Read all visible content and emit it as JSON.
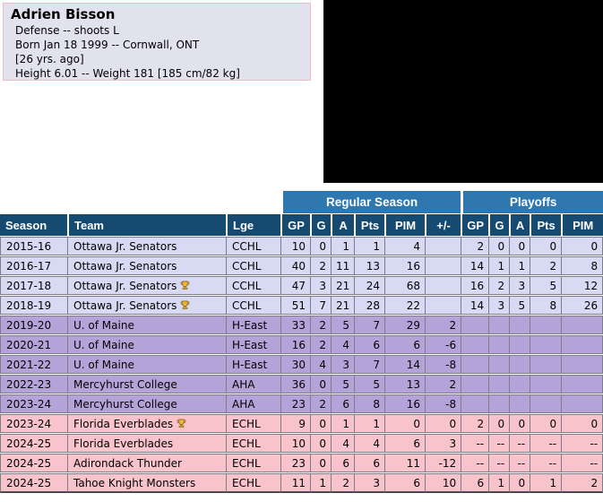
{
  "player_info": {
    "name": "Adrien Bisson",
    "details": [
      "Defense -- shoots L",
      "Born Jan 18 1999 -- Cornwall, ONT",
      "[26 yrs. ago]",
      "Height 6.01 -- Weight 181 [185 cm/82 kg]"
    ]
  },
  "colors": {
    "band_blue": "#2e77af",
    "header_navy": "#174a70",
    "row_lavender": "#d8d9f2",
    "row_purple": "#b4a3d8",
    "row_pink": "#f8c3cb",
    "grid_line": "#7d7d8a",
    "info_bg": "#e2e2ef",
    "info_border": "#f3bac5",
    "trophy_gold": "#f2b632"
  },
  "stats_table": {
    "group_headers": {
      "regular_season": "Regular Season",
      "playoffs": "Playoffs"
    },
    "columns": [
      "Season",
      "Team",
      "Lge",
      "GP",
      "G",
      "A",
      "Pts",
      "PIM",
      "+/-",
      "GP",
      "G",
      "A",
      "Pts",
      "PIM"
    ],
    "rows": [
      {
        "season": "2015-16",
        "team": "Ottawa Jr. Senators",
        "trophy": false,
        "lge": "CCHL",
        "rs": [
          "10",
          "0",
          "1",
          "1",
          "4",
          ""
        ],
        "po": [
          "2",
          "0",
          "0",
          "0",
          "0"
        ],
        "color": "lavender"
      },
      {
        "season": "2016-17",
        "team": "Ottawa Jr. Senators",
        "trophy": false,
        "lge": "CCHL",
        "rs": [
          "40",
          "2",
          "11",
          "13",
          "16",
          ""
        ],
        "po": [
          "14",
          "1",
          "1",
          "2",
          "8"
        ],
        "color": "lavender"
      },
      {
        "season": "2017-18",
        "team": "Ottawa Jr. Senators",
        "trophy": true,
        "lge": "CCHL",
        "rs": [
          "47",
          "3",
          "21",
          "24",
          "68",
          ""
        ],
        "po": [
          "16",
          "2",
          "3",
          "5",
          "12"
        ],
        "color": "lavender"
      },
      {
        "season": "2018-19",
        "team": "Ottawa Jr. Senators",
        "trophy": true,
        "lge": "CCHL",
        "rs": [
          "51",
          "7",
          "21",
          "28",
          "22",
          ""
        ],
        "po": [
          "14",
          "3",
          "5",
          "8",
          "26"
        ],
        "color": "lavender"
      },
      {
        "season": "2019-20",
        "team": "U. of Maine",
        "trophy": false,
        "lge": "H-East",
        "rs": [
          "33",
          "2",
          "5",
          "7",
          "29",
          "2"
        ],
        "po": [
          "",
          "",
          "",
          "",
          ""
        ],
        "color": "purple"
      },
      {
        "season": "2020-21",
        "team": "U. of Maine",
        "trophy": false,
        "lge": "H-East",
        "rs": [
          "16",
          "2",
          "4",
          "6",
          "6",
          "-6"
        ],
        "po": [
          "",
          "",
          "",
          "",
          ""
        ],
        "color": "purple"
      },
      {
        "season": "2021-22",
        "team": "U. of Maine",
        "trophy": false,
        "lge": "H-East",
        "rs": [
          "30",
          "4",
          "3",
          "7",
          "14",
          "-8"
        ],
        "po": [
          "",
          "",
          "",
          "",
          ""
        ],
        "color": "purple"
      },
      {
        "season": "2022-23",
        "team": "Mercyhurst College",
        "trophy": false,
        "lge": "AHA",
        "rs": [
          "36",
          "0",
          "5",
          "5",
          "13",
          "2"
        ],
        "po": [
          "",
          "",
          "",
          "",
          ""
        ],
        "color": "purple"
      },
      {
        "season": "2023-24",
        "team": "Mercyhurst College",
        "trophy": false,
        "lge": "AHA",
        "rs": [
          "23",
          "2",
          "6",
          "8",
          "16",
          "-8"
        ],
        "po": [
          "",
          "",
          "",
          "",
          ""
        ],
        "color": "purple"
      },
      {
        "season": "2023-24",
        "team": "Florida Everblades",
        "trophy": true,
        "lge": "ECHL",
        "rs": [
          "9",
          "0",
          "1",
          "1",
          "0",
          "0"
        ],
        "po": [
          "2",
          "0",
          "0",
          "0",
          "0"
        ],
        "color": "pink"
      },
      {
        "season": "2024-25",
        "team": "Florida Everblades",
        "trophy": false,
        "lge": "ECHL",
        "rs": [
          "10",
          "0",
          "4",
          "4",
          "6",
          "3"
        ],
        "po": [
          "--",
          "--",
          "--",
          "--",
          "--"
        ],
        "color": "pink"
      },
      {
        "season": "2024-25",
        "team": "Adirondack Thunder",
        "trophy": false,
        "lge": "ECHL",
        "rs": [
          "23",
          "0",
          "6",
          "6",
          "11",
          "-12"
        ],
        "po": [
          "--",
          "--",
          "--",
          "--",
          "--"
        ],
        "color": "pink"
      },
      {
        "season": "2024-25",
        "team": "Tahoe Knight Monsters",
        "trophy": false,
        "lge": "ECHL",
        "rs": [
          "11",
          "1",
          "2",
          "3",
          "6",
          "10"
        ],
        "po": [
          "6",
          "1",
          "0",
          "1",
          "2"
        ],
        "color": "pink"
      }
    ]
  }
}
